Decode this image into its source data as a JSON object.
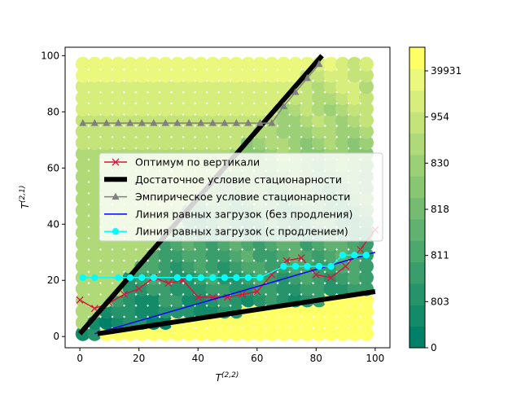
{
  "chart_data": {
    "type": "scatter",
    "xlabel": "T^(2,2)",
    "ylabel": "T^(2,1)",
    "xlim": [
      -5,
      105
    ],
    "ylim": [
      -4,
      103
    ],
    "x_ticks": [
      0,
      20,
      40,
      60,
      80,
      100
    ],
    "y_ticks": [
      0,
      20,
      40,
      60,
      80,
      100
    ],
    "grid": false,
    "legend_position": "center",
    "colorbar": {
      "colors": [
        "#008066",
        "#138a68",
        "#26946a",
        "#399e6c",
        "#4da86e",
        "#61b270",
        "#75bc72",
        "#89c674",
        "#9cd076",
        "#b0da78",
        "#c4e47a",
        "#d8ee7c",
        "#ebf87e",
        "#ffff66"
      ],
      "tick_labels": [
        "0",
        "803",
        "811",
        "818",
        "830",
        "954",
        "39931"
      ]
    },
    "series": [
      {
        "name": "Оптимум по вертикали",
        "color": "#dc143c",
        "marker": "x",
        "x": [
          0,
          5,
          10,
          15,
          20,
          25,
          30,
          35,
          40,
          45,
          50,
          55,
          60,
          65,
          70,
          75,
          80,
          85,
          90,
          95,
          100
        ],
        "y": [
          13,
          10,
          12,
          15,
          17,
          21,
          19,
          20,
          14,
          14,
          14,
          15,
          16,
          22,
          27,
          28,
          22,
          21,
          25,
          31,
          38
        ]
      },
      {
        "name": "Достаточное условие стационарности",
        "color": "#000000",
        "marker": "none",
        "x": [
          0,
          82
        ],
        "y": [
          1,
          100
        ]
      },
      {
        "name": "Эмпирическое условие стационарности",
        "color": "#808080",
        "marker": "triangle",
        "x": [
          1,
          5,
          9,
          13,
          17,
          21,
          25,
          29,
          33,
          37,
          41,
          45,
          49,
          53,
          57,
          61,
          65,
          69,
          73,
          77,
          81
        ],
        "y": [
          76,
          76,
          76,
          76,
          76,
          76,
          76,
          76,
          76,
          76,
          76,
          76,
          76,
          76,
          76,
          76,
          76,
          82,
          87,
          92,
          97
        ]
      },
      {
        "name": "Линия равных загрузок (без продления)",
        "color": "#0000ff",
        "marker": "none",
        "x": [
          5,
          100
        ],
        "y": [
          1,
          30
        ]
      },
      {
        "name": "Линия равных загрузок (с продлением)",
        "color": "#00ffff",
        "marker": "circle",
        "x": [
          1,
          5,
          13,
          17,
          21,
          25,
          33,
          37,
          41,
          45,
          49,
          53,
          57,
          61,
          69,
          73,
          77,
          81,
          85,
          89,
          93,
          97
        ],
        "y": [
          21,
          21,
          21,
          21,
          21,
          21,
          21,
          21,
          21,
          21,
          21,
          21,
          21,
          21,
          25,
          25,
          25,
          25,
          25,
          29,
          29,
          29
        ]
      },
      {
        "name": "",
        "color": "#000000",
        "marker": "none",
        "x": [
          6,
          100
        ],
        "y": [
          1,
          16
        ]
      }
    ]
  }
}
